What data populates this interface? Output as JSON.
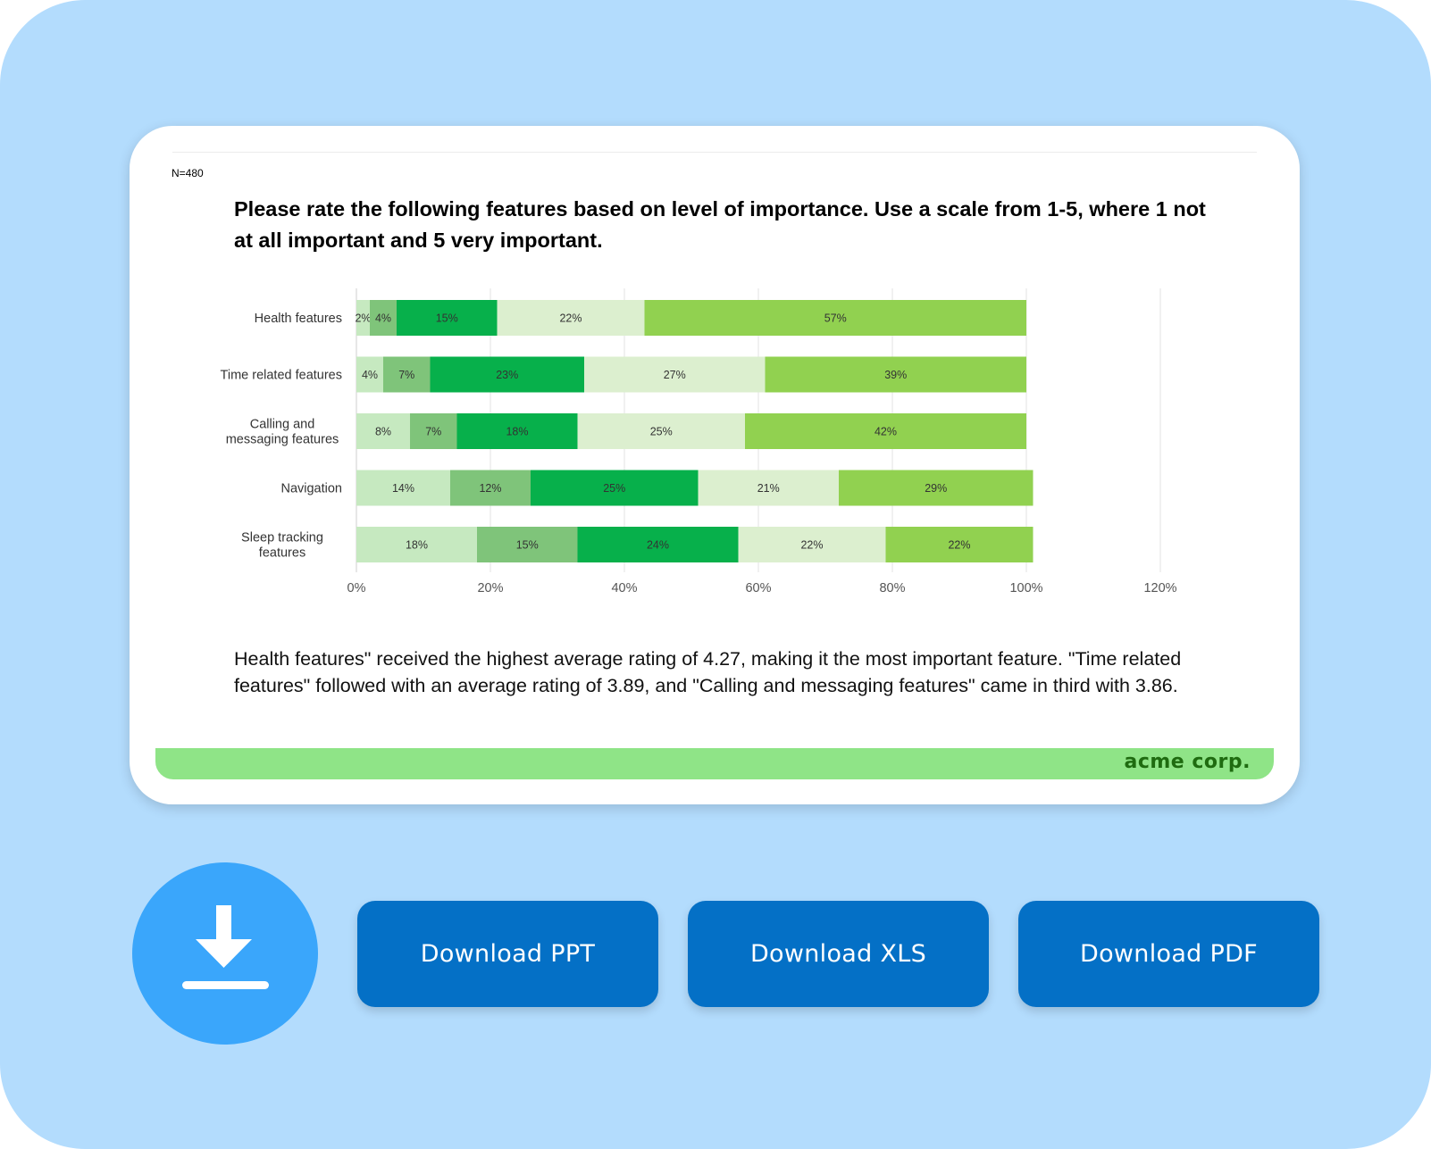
{
  "report": {
    "sample_size": "N=480",
    "question": "Please rate the following features based on level of importance. Use a scale from 1-5, where 1 not at all important and 5 very important.",
    "summary": "Health features\" received the highest average rating of 4.27, making it the most important feature. \"Time related features\" followed with an average rating of 3.89, and \"Calling and messaging features\" came in third with 3.86.",
    "brand": "acme corp."
  },
  "chart_data": {
    "type": "bar",
    "orientation": "horizontal",
    "stacked": true,
    "categories": [
      "Health features",
      "Time related features",
      "Calling and messaging features",
      "Navigation",
      "Sleep tracking features"
    ],
    "category_label_lines": [
      [
        "Health features"
      ],
      [
        "Time related features"
      ],
      [
        "Calling and",
        "messaging features"
      ],
      [
        "Navigation"
      ],
      [
        "Sleep tracking",
        "features"
      ]
    ],
    "series": [
      {
        "values": [
          2,
          4,
          8,
          14,
          18
        ],
        "color": "#c6e9c0"
      },
      {
        "values": [
          4,
          7,
          7,
          12,
          15
        ],
        "color": "#7fc47a"
      },
      {
        "values": [
          15,
          23,
          18,
          25,
          24
        ],
        "color": "#07b04b"
      },
      {
        "values": [
          22,
          27,
          25,
          21,
          22
        ],
        "color": "#dcefcf"
      },
      {
        "values": [
          57,
          39,
          42,
          29,
          22
        ],
        "color": "#91d150"
      }
    ],
    "xlim": [
      0,
      120
    ],
    "xticks": [
      0,
      20,
      40,
      60,
      80,
      100,
      120
    ],
    "tick_format": "{v}%",
    "value_label_format": "{v}%",
    "grid": true,
    "legend": "none"
  },
  "downloads": {
    "icon": "download-icon",
    "ppt_label": "Download PPT",
    "xls_label": "Download XLS",
    "pdf_label": "Download PDF",
    "button_color": "#0470c6",
    "circle_color": "#3aa6fb"
  }
}
